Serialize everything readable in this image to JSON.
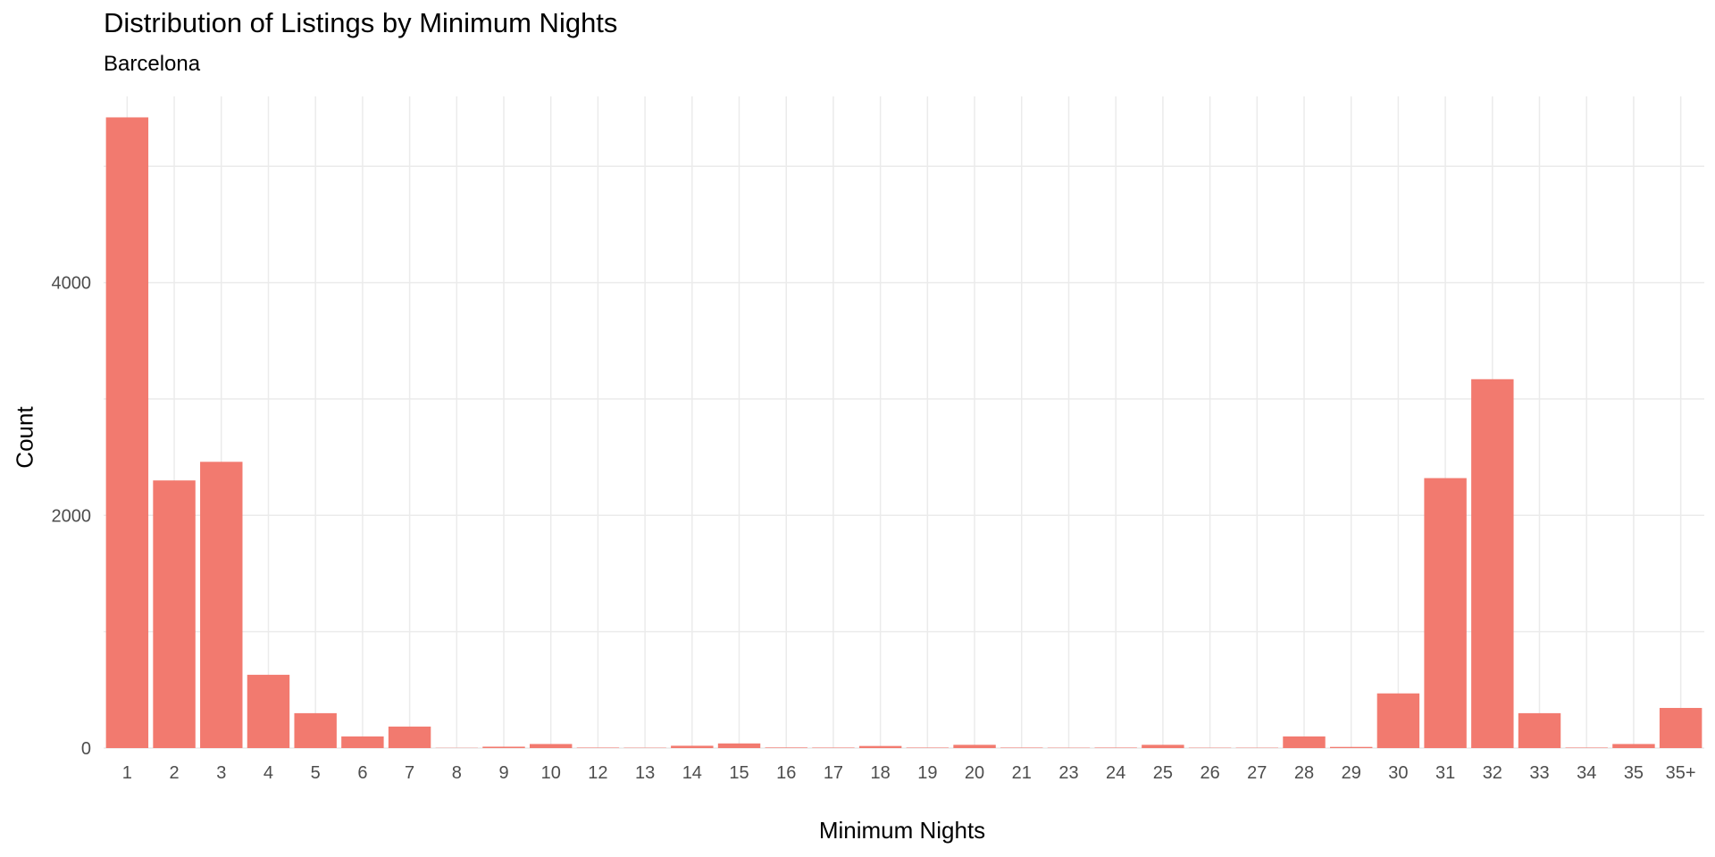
{
  "chart_data": {
    "type": "bar",
    "title": "Distribution of Listings by Minimum Nights",
    "subtitle": "Barcelona",
    "xlabel": "Minimum Nights",
    "ylabel": "Count",
    "categories": [
      "1",
      "2",
      "3",
      "4",
      "5",
      "6",
      "7",
      "8",
      "9",
      "10",
      "12",
      "13",
      "14",
      "15",
      "16",
      "17",
      "18",
      "19",
      "20",
      "21",
      "23",
      "24",
      "25",
      "26",
      "27",
      "28",
      "29",
      "30",
      "31",
      "32",
      "33",
      "34",
      "35",
      "35+"
    ],
    "values": [
      5420,
      2300,
      2460,
      630,
      300,
      100,
      185,
      2,
      12,
      35,
      4,
      3,
      20,
      40,
      5,
      4,
      18,
      4,
      28,
      4,
      3,
      4,
      28,
      3,
      3,
      100,
      10,
      470,
      2320,
      3170,
      300,
      4,
      35,
      345
    ],
    "ylim": [
      0,
      5600
    ],
    "yticks": [
      0,
      2000,
      4000
    ],
    "ytick_labels": [
      "0",
      "2000",
      "4000"
    ],
    "grid": true,
    "legend": "none",
    "bar_color": "#F27A6F",
    "grid_color": "#EBEBEB"
  }
}
